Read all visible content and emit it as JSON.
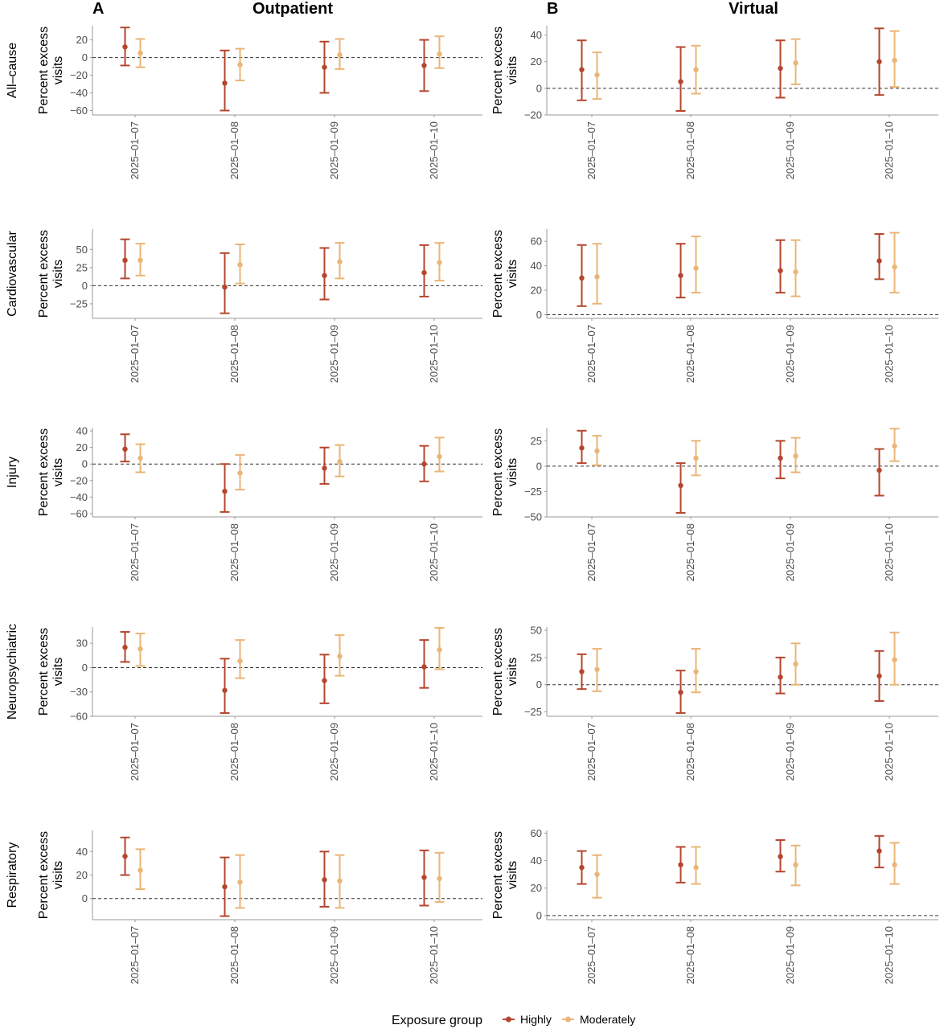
{
  "columns": [
    {
      "letter": "A",
      "title": "Outpatient"
    },
    {
      "letter": "B",
      "title": "Virtual"
    }
  ],
  "ylabel": [
    "Percent excess",
    "visits"
  ],
  "legend": {
    "title": "Exposure group",
    "items": [
      "Highly",
      "Moderately"
    ]
  },
  "colors": {
    "Highly": "#b5452d",
    "Moderately": "#eab576",
    "axis": "#999999",
    "zero_line": "#333333"
  },
  "chart_data": [
    {
      "type": "errorbar",
      "row": "All–cause",
      "column": "Outpatient",
      "categories": [
        "2025–01–07",
        "2025–01–08",
        "2025–01–09",
        "2025–01–10"
      ],
      "ylim": [
        -65,
        36
      ],
      "yticks": [
        20,
        0,
        -20,
        -40,
        -60
      ],
      "series": [
        {
          "name": "Highly",
          "estimate": [
            12,
            -29,
            -11,
            -9
          ],
          "lower": [
            -9,
            -60,
            -40,
            -38
          ],
          "upper": [
            34,
            8,
            18,
            20
          ]
        },
        {
          "name": "Moderately",
          "estimate": [
            5,
            -8,
            3,
            4
          ],
          "lower": [
            -11,
            -26,
            -13,
            -12
          ],
          "upper": [
            21,
            10,
            21,
            24
          ]
        }
      ]
    },
    {
      "type": "errorbar",
      "row": "All–cause",
      "column": "Virtual",
      "categories": [
        "2025–01–07",
        "2025–01–08",
        "2025–01–09",
        "2025–01–10"
      ],
      "ylim": [
        -20,
        47
      ],
      "yticks": [
        40,
        20,
        0,
        -20
      ],
      "series": [
        {
          "name": "Highly",
          "estimate": [
            14,
            5,
            15,
            20
          ],
          "lower": [
            -9,
            -17,
            -7,
            -5
          ],
          "upper": [
            36,
            31,
            36,
            45
          ]
        },
        {
          "name": "Moderately",
          "estimate": [
            10,
            14,
            19,
            21
          ],
          "lower": [
            -8,
            -4,
            3,
            1
          ],
          "upper": [
            27,
            32,
            37,
            43
          ]
        }
      ]
    },
    {
      "type": "errorbar",
      "row": "Cardiovascular",
      "column": "Outpatient",
      "categories": [
        "2025–01–07",
        "2025–01–08",
        "2025–01–09",
        "2025–01–10"
      ],
      "ylim": [
        -45,
        78
      ],
      "yticks": [
        50,
        25,
        0,
        -25
      ],
      "series": [
        {
          "name": "Highly",
          "estimate": [
            35,
            -2,
            14,
            18
          ],
          "lower": [
            10,
            -38,
            -19,
            -15
          ],
          "upper": [
            64,
            45,
            52,
            56
          ]
        },
        {
          "name": "Moderately",
          "estimate": [
            35,
            29,
            33,
            32
          ],
          "lower": [
            14,
            3,
            10,
            7
          ],
          "upper": [
            58,
            57,
            59,
            59
          ]
        }
      ]
    },
    {
      "type": "errorbar",
      "row": "Cardiovascular",
      "column": "Virtual",
      "categories": [
        "2025–01–07",
        "2025–01–08",
        "2025–01–09",
        "2025–01–10"
      ],
      "ylim": [
        -3,
        70
      ],
      "yticks": [
        60,
        40,
        20,
        0
      ],
      "series": [
        {
          "name": "Highly",
          "estimate": [
            30,
            32,
            36,
            44
          ],
          "lower": [
            7,
            14,
            18,
            29
          ],
          "upper": [
            57,
            58,
            61,
            66
          ]
        },
        {
          "name": "Moderately",
          "estimate": [
            31,
            38,
            35,
            39
          ],
          "lower": [
            9,
            18,
            15,
            18
          ],
          "upper": [
            58,
            64,
            61,
            67
          ]
        }
      ]
    },
    {
      "type": "errorbar",
      "row": "Injury",
      "column": "Outpatient",
      "categories": [
        "2025–01–07",
        "2025–01–08",
        "2025–01–09",
        "2025–01–10"
      ],
      "ylim": [
        -64,
        44
      ],
      "yticks": [
        40,
        20,
        0,
        -20,
        -40,
        -60
      ],
      "series": [
        {
          "name": "Highly",
          "estimate": [
            18,
            -33,
            -5,
            0
          ],
          "lower": [
            3,
            -58,
            -24,
            -21
          ],
          "upper": [
            36,
            0,
            20,
            22
          ]
        },
        {
          "name": "Moderately",
          "estimate": [
            7,
            -11,
            3,
            9
          ],
          "lower": [
            -10,
            -31,
            -15,
            -9
          ],
          "upper": [
            24,
            11,
            23,
            32
          ]
        }
      ]
    },
    {
      "type": "errorbar",
      "row": "Injury",
      "column": "Virtual",
      "categories": [
        "2025–01–07",
        "2025–01–08",
        "2025–01–09",
        "2025–01–10"
      ],
      "ylim": [
        -50,
        38
      ],
      "yticks": [
        25,
        0,
        -25,
        -50
      ],
      "series": [
        {
          "name": "Highly",
          "estimate": [
            18,
            -19,
            8,
            -4
          ],
          "lower": [
            3,
            -46,
            -12,
            -29
          ],
          "upper": [
            35,
            3,
            25,
            17
          ]
        },
        {
          "name": "Moderately",
          "estimate": [
            15,
            8,
            10,
            20
          ],
          "lower": [
            1,
            -9,
            -6,
            5
          ],
          "upper": [
            30,
            25,
            28,
            37
          ]
        }
      ]
    },
    {
      "type": "errorbar",
      "row": "Neuropsychiatric",
      "column": "Outpatient",
      "categories": [
        "2025–01–07",
        "2025–01–08",
        "2025–01–09",
        "2025–01–10"
      ],
      "ylim": [
        -60,
        50
      ],
      "yticks": [
        30,
        0,
        -30,
        -60
      ],
      "series": [
        {
          "name": "Highly",
          "estimate": [
            25,
            -28,
            -16,
            1
          ],
          "lower": [
            7,
            -56,
            -44,
            -25
          ],
          "upper": [
            44,
            11,
            16,
            34
          ]
        },
        {
          "name": "Moderately",
          "estimate": [
            23,
            8,
            14,
            22
          ],
          "lower": [
            2,
            -13,
            -10,
            -2
          ],
          "upper": [
            42,
            34,
            40,
            49
          ]
        }
      ]
    },
    {
      "type": "errorbar",
      "row": "Neuropsychiatric",
      "column": "Virtual",
      "categories": [
        "2025–01–07",
        "2025–01–08",
        "2025–01–09",
        "2025–01–10"
      ],
      "ylim": [
        -29,
        53
      ],
      "yticks": [
        50,
        25,
        0,
        -25
      ],
      "series": [
        {
          "name": "Highly",
          "estimate": [
            12,
            -7,
            7,
            8
          ],
          "lower": [
            -4,
            -26,
            -8,
            -15
          ],
          "upper": [
            28,
            13,
            25,
            31
          ]
        },
        {
          "name": "Moderately",
          "estimate": [
            14,
            12,
            19,
            23
          ],
          "lower": [
            -6,
            -7,
            0,
            0
          ],
          "upper": [
            33,
            33,
            38,
            48
          ]
        }
      ]
    },
    {
      "type": "errorbar",
      "row": "Respiratory",
      "column": "Outpatient",
      "categories": [
        "2025–01–07",
        "2025–01–08",
        "2025–01–09",
        "2025–01–10"
      ],
      "ylim": [
        -18,
        58
      ],
      "yticks": [
        40,
        20,
        0
      ],
      "series": [
        {
          "name": "Highly",
          "estimate": [
            36,
            10,
            16,
            18
          ],
          "lower": [
            20,
            -15,
            -7,
            -6
          ],
          "upper": [
            52,
            35,
            40,
            41
          ]
        },
        {
          "name": "Moderately",
          "estimate": [
            24,
            14,
            15,
            17
          ],
          "lower": [
            8,
            -8,
            -8,
            -3
          ],
          "upper": [
            42,
            37,
            37,
            39
          ]
        }
      ]
    },
    {
      "type": "errorbar",
      "row": "Respiratory",
      "column": "Virtual",
      "categories": [
        "2025–01–07",
        "2025–01–08",
        "2025–01–09",
        "2025–01–10"
      ],
      "ylim": [
        -3,
        62
      ],
      "yticks": [
        60,
        40,
        20,
        0
      ],
      "series": [
        {
          "name": "Highly",
          "estimate": [
            35,
            37,
            43,
            47
          ],
          "lower": [
            23,
            24,
            32,
            35
          ],
          "upper": [
            47,
            50,
            55,
            58
          ]
        },
        {
          "name": "Moderately",
          "estimate": [
            30,
            35,
            37,
            37
          ],
          "lower": [
            13,
            23,
            22,
            23
          ],
          "upper": [
            44,
            50,
            51,
            53
          ]
        }
      ]
    }
  ]
}
